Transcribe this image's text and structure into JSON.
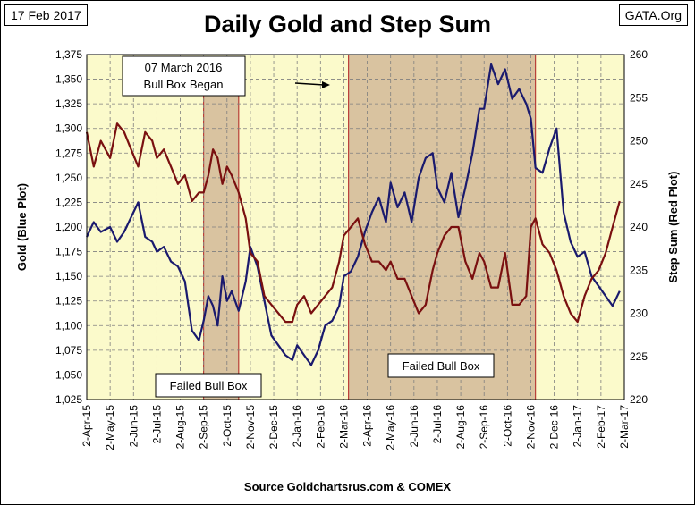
{
  "header": {
    "date": "17 Feb 2017",
    "source_tag": "GATA.Org",
    "title": "Daily Gold and Step Sum",
    "footer": "Source Goldchartsrus.com & COMEX"
  },
  "chart_data": {
    "type": "line",
    "title": "Daily Gold and Step Sum",
    "xlabel": "",
    "ylabel_left": "Gold   (Blue Plot)",
    "ylabel_right": "Step Sum   (Red Plot)",
    "ylim_left": [
      1025,
      1375
    ],
    "ylim_right": [
      220,
      260
    ],
    "left_ticks": [
      "1,025",
      "1,050",
      "1,075",
      "1,100",
      "1,125",
      "1,150",
      "1,175",
      "1,200",
      "1,225",
      "1,250",
      "1,275",
      "1,300",
      "1,325",
      "1,350",
      "1,375"
    ],
    "right_ticks": [
      "220",
      "225",
      "230",
      "235",
      "240",
      "245",
      "250",
      "255",
      "260"
    ],
    "x_ticks": [
      "2-Apr-15",
      "2-May-15",
      "2-Jun-15",
      "2-Jul-15",
      "2-Aug-15",
      "2-Sep-15",
      "2-Oct-15",
      "2-Nov-15",
      "2-Dec-15",
      "2-Jan-16",
      "2-Feb-16",
      "2-Mar-16",
      "2-Apr-16",
      "2-May-16",
      "2-Jun-16",
      "2-Jul-16",
      "2-Aug-16",
      "2-Sep-16",
      "2-Oct-16",
      "2-Nov-16",
      "2-Dec-16",
      "2-Jan-17",
      "2-Feb-17",
      "2-Mar-17"
    ],
    "grid": true,
    "annotations": {
      "bull_box_began": "07 March 2016\nBull Box Began",
      "failed_box_1": "Failed Bull Box",
      "failed_box_2": "Failed Bull Box"
    },
    "boxes": [
      {
        "label": "Failed Bull Box",
        "x_start": 5.0,
        "x_end": 6.5,
        "y_low": 1025,
        "y_high": 1335
      },
      {
        "label": "Failed Bull Box",
        "x_start": 11.2,
        "x_end": 19.2,
        "y_low": 1025,
        "y_high": 1375
      }
    ],
    "series": [
      {
        "name": "Gold",
        "axis": "left",
        "color": "#1a1a6e",
        "x": [
          0,
          0.3,
          0.6,
          1,
          1.3,
          1.6,
          1.9,
          2.2,
          2.5,
          2.8,
          3.0,
          3.3,
          3.6,
          3.9,
          4.2,
          4.5,
          4.8,
          5.0,
          5.2,
          5.4,
          5.6,
          5.8,
          6.0,
          6.2,
          6.5,
          6.8,
          7.0,
          7.3,
          7.6,
          7.9,
          8.2,
          8.5,
          8.8,
          9.0,
          9.3,
          9.6,
          9.9,
          10.2,
          10.5,
          10.8,
          11.0,
          11.3,
          11.6,
          11.9,
          12.2,
          12.5,
          12.8,
          13.0,
          13.3,
          13.6,
          13.9,
          14.2,
          14.5,
          14.8,
          15.0,
          15.3,
          15.6,
          15.9,
          16.2,
          16.5,
          16.8,
          17.0,
          17.3,
          17.6,
          17.9,
          18.2,
          18.5,
          18.8,
          19.0,
          19.2,
          19.5,
          19.8,
          20.1,
          20.4,
          20.7,
          21.0,
          21.3,
          21.6,
          21.9,
          22.2,
          22.5,
          22.8
        ],
        "values": [
          1190,
          1205,
          1195,
          1200,
          1185,
          1195,
          1210,
          1225,
          1190,
          1185,
          1175,
          1180,
          1165,
          1160,
          1145,
          1095,
          1085,
          1105,
          1130,
          1120,
          1100,
          1150,
          1125,
          1135,
          1115,
          1145,
          1180,
          1160,
          1125,
          1090,
          1080,
          1070,
          1065,
          1080,
          1070,
          1060,
          1075,
          1100,
          1105,
          1120,
          1150,
          1155,
          1170,
          1195,
          1215,
          1230,
          1205,
          1245,
          1220,
          1235,
          1205,
          1250,
          1270,
          1275,
          1240,
          1225,
          1255,
          1210,
          1240,
          1275,
          1320,
          1320,
          1365,
          1345,
          1360,
          1330,
          1340,
          1325,
          1310,
          1260,
          1255,
          1280,
          1300,
          1215,
          1185,
          1170,
          1175,
          1150,
          1140,
          1130,
          1120,
          1135
        ]
      },
      {
        "name": "Step Sum",
        "axis": "right",
        "color": "#7a1010",
        "x": [
          0,
          0.3,
          0.6,
          1,
          1.3,
          1.6,
          1.9,
          2.2,
          2.5,
          2.8,
          3.0,
          3.3,
          3.6,
          3.9,
          4.2,
          4.5,
          4.8,
          5.0,
          5.2,
          5.4,
          5.6,
          5.8,
          6.0,
          6.2,
          6.5,
          6.8,
          7.0,
          7.3,
          7.6,
          7.9,
          8.2,
          8.5,
          8.8,
          9.0,
          9.3,
          9.6,
          9.9,
          10.2,
          10.5,
          10.8,
          11.0,
          11.3,
          11.6,
          11.9,
          12.2,
          12.5,
          12.8,
          13.0,
          13.3,
          13.6,
          13.9,
          14.2,
          14.5,
          14.8,
          15.0,
          15.3,
          15.6,
          15.9,
          16.2,
          16.5,
          16.8,
          17.0,
          17.3,
          17.6,
          17.9,
          18.2,
          18.5,
          18.8,
          19.0,
          19.2,
          19.5,
          19.8,
          20.1,
          20.4,
          20.7,
          21.0,
          21.3,
          21.6,
          21.9,
          22.2,
          22.5,
          22.8
        ],
        "values": [
          251,
          247,
          250,
          248,
          252,
          251,
          249,
          247,
          251,
          250,
          248,
          249,
          247,
          245,
          246,
          243,
          244,
          244,
          246,
          249,
          248,
          245,
          247,
          246,
          244,
          241,
          237,
          236,
          232,
          231,
          230,
          229,
          229,
          231,
          232,
          230,
          231,
          232,
          233,
          236,
          239,
          240,
          241,
          238,
          236,
          236,
          235,
          236,
          234,
          234,
          232,
          230,
          231,
          235,
          237,
          239,
          240,
          240,
          236,
          234,
          237,
          236,
          233,
          233,
          237,
          231,
          231,
          232,
          240,
          241,
          238,
          237,
          235,
          232,
          230,
          229,
          232,
          234,
          235,
          237,
          240,
          243
        ]
      }
    ]
  }
}
